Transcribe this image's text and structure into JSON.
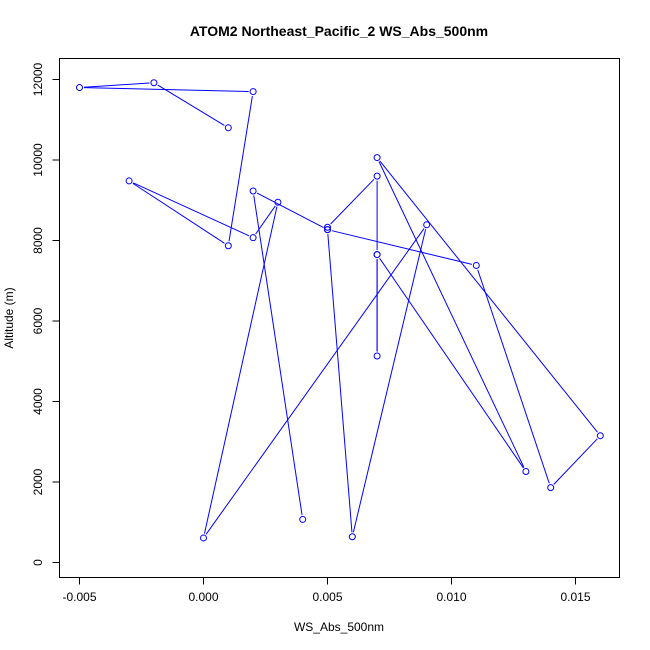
{
  "chart_data": {
    "type": "line",
    "title": "ATOM2 Northeast_Pacific_2 WS_Abs_500nm",
    "xlabel": "WS_Abs_500nm",
    "ylabel": "Altitude (m)",
    "xlim": [
      -0.005,
      0.016
    ],
    "ylim": [
      0,
      12000
    ],
    "x_ticks": [
      -0.005,
      0.0,
      0.005,
      0.01,
      0.015
    ],
    "x_tick_labels": [
      "-0.005",
      "0.000",
      "0.005",
      "0.010",
      "0.015"
    ],
    "y_ticks": [
      0,
      2000,
      4000,
      6000,
      8000,
      10000,
      12000
    ],
    "y_tick_labels": [
      "0",
      "2000",
      "4000",
      "6000",
      "8000",
      "10000",
      "12000"
    ],
    "grid": false,
    "marker": "open-circle",
    "color": "#0000ff",
    "series": [
      {
        "points": [
          {
            "x": 0.001,
            "y": 10800
          },
          {
            "x": -0.002,
            "y": 11920
          },
          {
            "x": -0.005,
            "y": 11800
          },
          {
            "x": 0.002,
            "y": 11700
          },
          {
            "x": 0.001,
            "y": 7870
          },
          {
            "x": -0.003,
            "y": 9480
          },
          {
            "x": 0.002,
            "y": 8070
          },
          {
            "x": 0.003,
            "y": 8950
          },
          {
            "x": 0.0,
            "y": 610
          },
          {
            "x": 0.009,
            "y": 8390
          },
          {
            "x": 0.006,
            "y": 640
          },
          {
            "x": 0.005,
            "y": 8270
          },
          {
            "x": 0.005,
            "y": 8330
          },
          {
            "x": 0.007,
            "y": 9600
          },
          {
            "x": 0.007,
            "y": 7650
          },
          {
            "x": 0.007,
            "y": 5130
          },
          {
            "x": 0.007,
            "y": 7650
          },
          {
            "x": 0.013,
            "y": 2260
          },
          {
            "x": 0.007,
            "y": 10060
          },
          {
            "x": 0.016,
            "y": 3150
          },
          {
            "x": 0.014,
            "y": 1860
          },
          {
            "x": 0.011,
            "y": 7380
          },
          {
            "x": 0.005,
            "y": 8270
          },
          {
            "x": 0.002,
            "y": 9230
          },
          {
            "x": 0.004,
            "y": 1070
          }
        ]
      }
    ]
  }
}
